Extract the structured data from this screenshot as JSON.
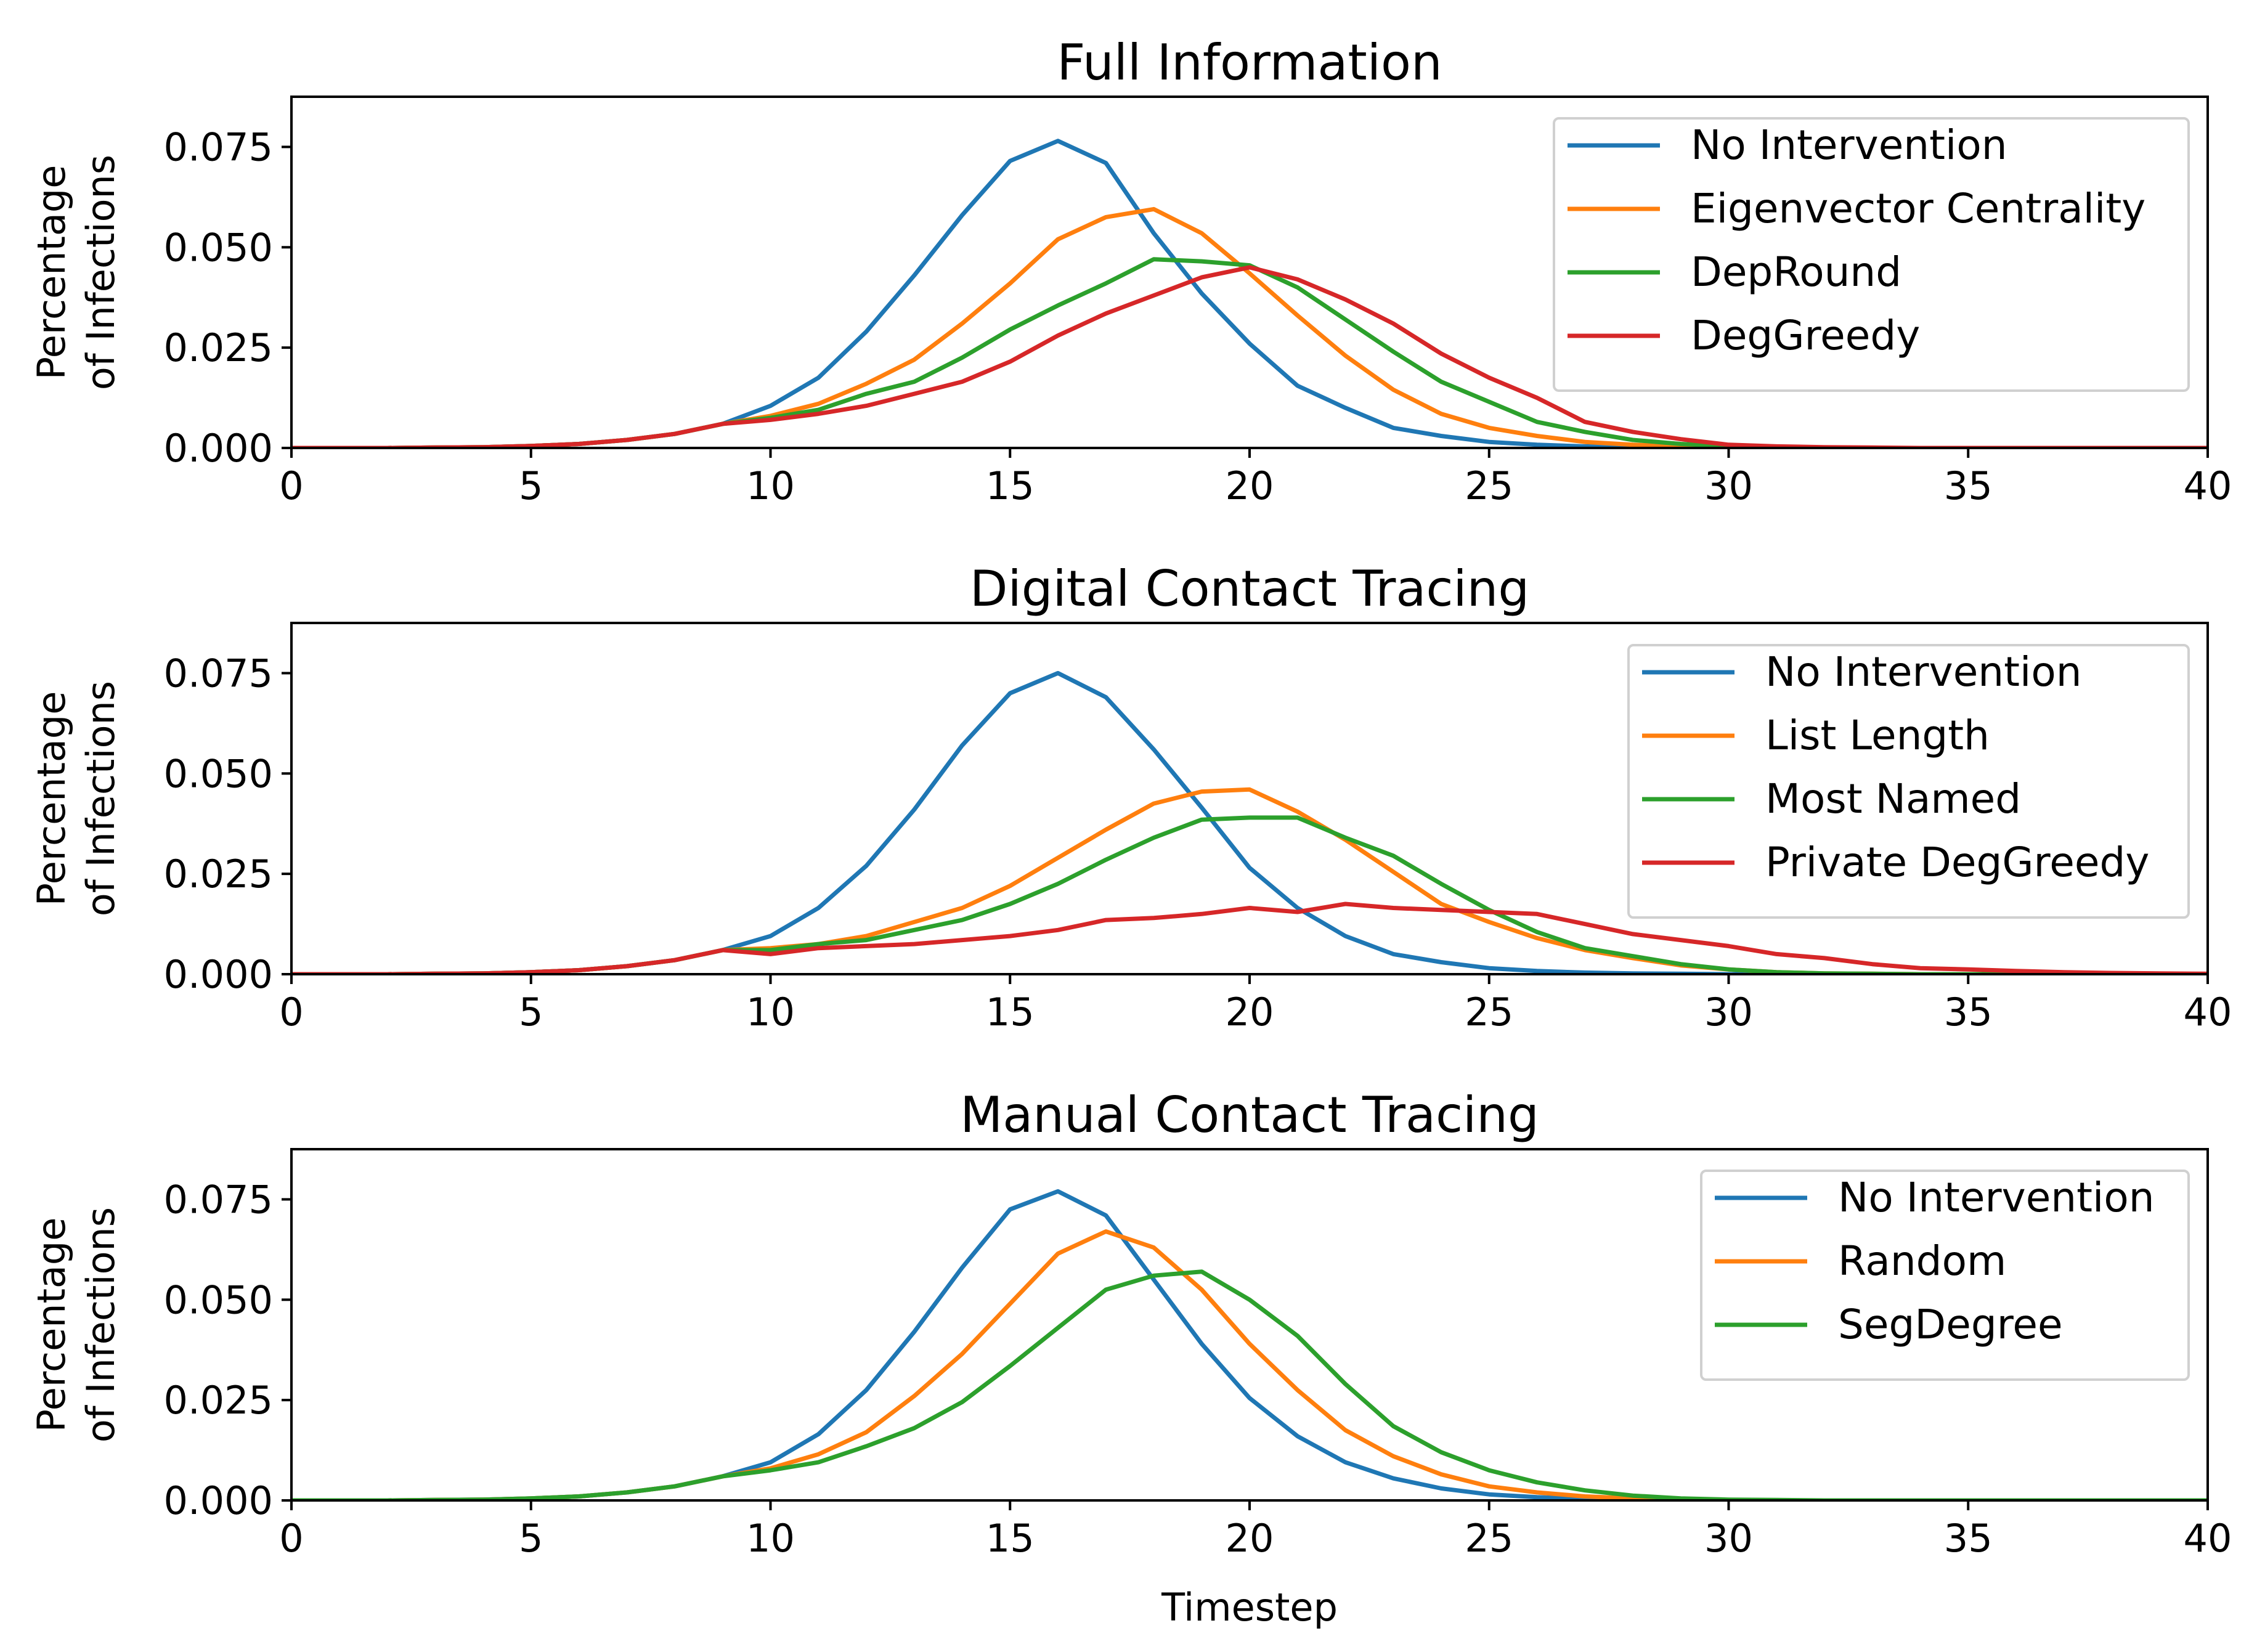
{
  "figure": {
    "xlabel": "Timestep",
    "ylabel_line1": "Percentage",
    "ylabel_line2": "of Infections"
  },
  "chart_data": [
    {
      "type": "line",
      "title": "Full Information",
      "xlim": [
        0,
        40
      ],
      "ylim": [
        0,
        0.0875
      ],
      "xticks": [
        "0",
        "5",
        "10",
        "15",
        "20",
        "25",
        "30",
        "35",
        "40"
      ],
      "yticks": [
        "0.000",
        "0.025",
        "0.050",
        "0.075"
      ],
      "legend_position": "top-right",
      "x": [
        0,
        1,
        2,
        3,
        4,
        5,
        6,
        7,
        8,
        9,
        10,
        11,
        12,
        13,
        14,
        15,
        16,
        17,
        18,
        19,
        20,
        21,
        22,
        23,
        24,
        25,
        26,
        27,
        28,
        29,
        30,
        31,
        32,
        33,
        34,
        35,
        36,
        37,
        38,
        39,
        40
      ],
      "series": [
        {
          "name": "No Intervention",
          "color": "#1f77b4",
          "values": [
            0,
            0,
            0,
            0.0001,
            0.0002,
            0.0005,
            0.001,
            0.002,
            0.0035,
            0.006,
            0.0105,
            0.0175,
            0.029,
            0.043,
            0.058,
            0.0715,
            0.0765,
            0.071,
            0.0535,
            0.0385,
            0.026,
            0.0155,
            0.01,
            0.005,
            0.003,
            0.0015,
            0.0008,
            0.0004,
            0.0002,
            0.0001,
            0,
            0,
            0,
            0,
            0,
            0,
            0,
            0,
            0,
            0,
            0
          ]
        },
        {
          "name": "Eigenvector Centrality",
          "color": "#ff7f0e",
          "values": [
            0,
            0,
            0,
            0.0001,
            0.0002,
            0.0005,
            0.001,
            0.002,
            0.0035,
            0.006,
            0.008,
            0.011,
            0.016,
            0.022,
            0.031,
            0.041,
            0.052,
            0.0575,
            0.0595,
            0.0535,
            0.0435,
            0.033,
            0.023,
            0.0145,
            0.0085,
            0.005,
            0.003,
            0.0015,
            0.0008,
            0.0004,
            0.0002,
            0,
            0,
            0,
            0,
            0,
            0,
            0,
            0,
            0,
            0
          ]
        },
        {
          "name": "DepRound",
          "color": "#2ca02c",
          "values": [
            0,
            0,
            0,
            0.0001,
            0.0002,
            0.0005,
            0.001,
            0.002,
            0.0035,
            0.006,
            0.0075,
            0.0095,
            0.0135,
            0.0165,
            0.0225,
            0.0295,
            0.0355,
            0.041,
            0.047,
            0.0465,
            0.0455,
            0.04,
            0.032,
            0.024,
            0.0165,
            0.0115,
            0.0065,
            0.004,
            0.002,
            0.001,
            0.0005,
            0.0002,
            0.0001,
            0,
            0,
            0,
            0,
            0,
            0,
            0,
            0
          ]
        },
        {
          "name": "DegGreedy",
          "color": "#d62728",
          "values": [
            0,
            0,
            0,
            0.0001,
            0.0002,
            0.0005,
            0.001,
            0.002,
            0.0035,
            0.006,
            0.007,
            0.0085,
            0.0105,
            0.0135,
            0.0165,
            0.0215,
            0.028,
            0.0335,
            0.038,
            0.0425,
            0.045,
            0.042,
            0.037,
            0.031,
            0.0235,
            0.0175,
            0.0125,
            0.0065,
            0.004,
            0.0022,
            0.0008,
            0.0004,
            0.0002,
            0.0001,
            0,
            0,
            0,
            0,
            0,
            0,
            0
          ]
        }
      ]
    },
    {
      "type": "line",
      "title": "Digital Contact Tracing",
      "xlim": [
        0,
        40
      ],
      "ylim": [
        0,
        0.0875
      ],
      "xticks": [
        "0",
        "5",
        "10",
        "15",
        "20",
        "25",
        "30",
        "35",
        "40"
      ],
      "yticks": [
        "0.000",
        "0.025",
        "0.050",
        "0.075"
      ],
      "legend_position": "top-right",
      "x": [
        0,
        1,
        2,
        3,
        4,
        5,
        6,
        7,
        8,
        9,
        10,
        11,
        12,
        13,
        14,
        15,
        16,
        17,
        18,
        19,
        20,
        21,
        22,
        23,
        24,
        25,
        26,
        27,
        28,
        29,
        30,
        31,
        32,
        33,
        34,
        35,
        36,
        37,
        38,
        39,
        40
      ],
      "series": [
        {
          "name": "No Intervention",
          "color": "#1f77b4",
          "values": [
            0,
            0,
            0,
            0.0001,
            0.0002,
            0.0005,
            0.001,
            0.002,
            0.0035,
            0.006,
            0.0095,
            0.0165,
            0.027,
            0.041,
            0.057,
            0.07,
            0.075,
            0.069,
            0.056,
            0.0415,
            0.0265,
            0.0165,
            0.0095,
            0.005,
            0.003,
            0.0015,
            0.0008,
            0.0004,
            0.0002,
            0.0001,
            0,
            0,
            0,
            0,
            0,
            0,
            0,
            0,
            0,
            0,
            0
          ]
        },
        {
          "name": "List Length",
          "color": "#ff7f0e",
          "values": [
            0,
            0,
            0,
            0.0001,
            0.0002,
            0.0005,
            0.001,
            0.002,
            0.0035,
            0.006,
            0.0065,
            0.0075,
            0.0095,
            0.013,
            0.0165,
            0.022,
            0.029,
            0.036,
            0.0425,
            0.0455,
            0.046,
            0.0405,
            0.0335,
            0.0255,
            0.0175,
            0.013,
            0.009,
            0.006,
            0.004,
            0.0022,
            0.0012,
            0.0005,
            0.0002,
            0.0001,
            0,
            0,
            0,
            0,
            0,
            0,
            0
          ]
        },
        {
          "name": "Most Named",
          "color": "#2ca02c",
          "values": [
            0,
            0,
            0,
            0.0001,
            0.0002,
            0.0005,
            0.001,
            0.002,
            0.0035,
            0.006,
            0.006,
            0.0075,
            0.0085,
            0.011,
            0.0135,
            0.0175,
            0.0225,
            0.0285,
            0.034,
            0.0385,
            0.039,
            0.039,
            0.034,
            0.0295,
            0.0225,
            0.016,
            0.0105,
            0.0065,
            0.0045,
            0.0025,
            0.0012,
            0.0005,
            0.0002,
            0.0001,
            0,
            0,
            0,
            0,
            0,
            0,
            0
          ]
        },
        {
          "name": "Private DegGreedy",
          "color": "#d62728",
          "values": [
            0,
            0,
            0,
            0.0001,
            0.0002,
            0.0005,
            0.001,
            0.002,
            0.0035,
            0.006,
            0.005,
            0.0065,
            0.007,
            0.0075,
            0.0085,
            0.0095,
            0.011,
            0.0135,
            0.014,
            0.015,
            0.0165,
            0.0155,
            0.0175,
            0.0165,
            0.016,
            0.0155,
            0.015,
            0.0125,
            0.01,
            0.0085,
            0.007,
            0.005,
            0.004,
            0.0025,
            0.0015,
            0.0012,
            0.0008,
            0.0005,
            0.0003,
            0.0002,
            0.0001
          ]
        }
      ]
    },
    {
      "type": "line",
      "title": "Manual Contact Tracing",
      "xlim": [
        0,
        40
      ],
      "ylim": [
        0,
        0.0875
      ],
      "xticks": [
        "0",
        "5",
        "10",
        "15",
        "20",
        "25",
        "30",
        "35",
        "40"
      ],
      "yticks": [
        "0.000",
        "0.025",
        "0.050",
        "0.075"
      ],
      "legend_position": "top-right",
      "x": [
        0,
        1,
        2,
        3,
        4,
        5,
        6,
        7,
        8,
        9,
        10,
        11,
        12,
        13,
        14,
        15,
        16,
        17,
        18,
        19,
        20,
        21,
        22,
        23,
        24,
        25,
        26,
        27,
        28,
        29,
        30,
        31,
        32,
        33,
        34,
        35,
        36,
        37,
        38,
        39,
        40
      ],
      "series": [
        {
          "name": "No Intervention",
          "color": "#1f77b4",
          "values": [
            0,
            0,
            0,
            0.0001,
            0.0002,
            0.0005,
            0.001,
            0.002,
            0.0035,
            0.006,
            0.0095,
            0.0165,
            0.0275,
            0.042,
            0.058,
            0.0725,
            0.077,
            0.071,
            0.055,
            0.039,
            0.0255,
            0.016,
            0.0095,
            0.0055,
            0.003,
            0.0015,
            0.0008,
            0.0004,
            0.0002,
            0.0001,
            0,
            0,
            0,
            0,
            0,
            0,
            0,
            0,
            0,
            0,
            0
          ]
        },
        {
          "name": "Random",
          "color": "#ff7f0e",
          "values": [
            0,
            0,
            0,
            0.0001,
            0.0002,
            0.0005,
            0.001,
            0.002,
            0.0035,
            0.006,
            0.008,
            0.0115,
            0.017,
            0.026,
            0.0365,
            0.049,
            0.0615,
            0.067,
            0.063,
            0.0525,
            0.039,
            0.0275,
            0.0175,
            0.011,
            0.0065,
            0.0035,
            0.002,
            0.001,
            0.0005,
            0.0002,
            0.0001,
            0,
            0,
            0,
            0,
            0,
            0,
            0,
            0,
            0,
            0
          ]
        },
        {
          "name": "SegDegree",
          "color": "#2ca02c",
          "values": [
            0,
            0,
            0,
            0.0001,
            0.0002,
            0.0005,
            0.001,
            0.002,
            0.0035,
            0.006,
            0.0075,
            0.0095,
            0.0135,
            0.018,
            0.0245,
            0.0335,
            0.043,
            0.0525,
            0.056,
            0.057,
            0.05,
            0.041,
            0.029,
            0.0185,
            0.012,
            0.0075,
            0.0045,
            0.0025,
            0.0012,
            0.0005,
            0.0002,
            0.0001,
            0,
            0,
            0,
            0,
            0,
            0,
            0,
            0,
            0
          ]
        }
      ]
    }
  ]
}
